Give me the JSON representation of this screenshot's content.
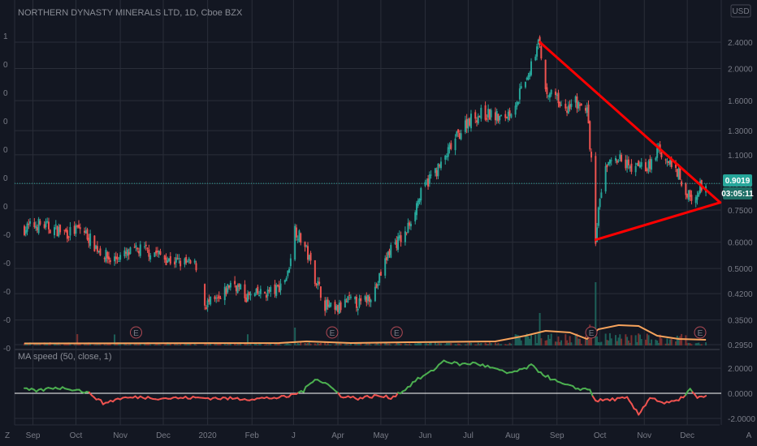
{
  "header": {
    "symbol": "NORTHERN DYNASTY MINERALS LTD, 1D, Cboe BZX",
    "currency": "USD"
  },
  "indicator": {
    "title": "MA speed (50, close, 1)",
    "ticks": [
      "2.0000",
      "0.0000",
      "-2.0000"
    ]
  },
  "price_tags": {
    "last": "0.9019",
    "countdown": "03:05:11"
  },
  "earnings_marker": "E",
  "bottom_left": "Z",
  "bottom_right": "A",
  "left_scale_partial": [
    "1",
    "0",
    "0",
    "0",
    "0",
    "0",
    "0",
    "-0",
    "-0",
    "-0",
    "-0",
    "-0"
  ],
  "colors": {
    "background": "#131722",
    "grid": "#2a2e39",
    "up": "#26a69a",
    "down": "#ef5350",
    "trendline": "#ff0000",
    "volume_ma": "#f7a35c",
    "ma_speed_up": "#4caf50",
    "ma_speed_down": "#ef5350",
    "last_price": "#26a69a"
  },
  "chart_data": [
    {
      "type": "candlestick",
      "title": "NORTHERN DYNASTY MINERALS LTD, 1D, Cboe BZX",
      "y_scale": "log",
      "y_ticks": [
        "2.4000",
        "2.0000",
        "1.6000",
        "1.3000",
        "1.1000",
        "0.9000",
        "0.7500",
        "0.6000",
        "0.5000",
        "0.4200",
        "0.3500",
        "0.2950"
      ],
      "x_ticks": [
        "Sep",
        "Oct",
        "Nov",
        "Dec",
        "2020",
        "Feb",
        "J",
        "Apr",
        "May",
        "Jun",
        "Jul",
        "Aug",
        "Sep",
        "Oct",
        "Nov",
        "Dec"
      ],
      "x_range": [
        "2019-08-26",
        "2020-12-10"
      ],
      "close_path": [
        [
          "2019-08-26",
          0.66
        ],
        [
          "2019-09-05",
          0.68
        ],
        [
          "2019-09-15",
          0.66
        ],
        [
          "2019-09-25",
          0.64
        ],
        [
          "2019-10-05",
          0.66
        ],
        [
          "2019-10-15",
          0.58
        ],
        [
          "2019-10-25",
          0.53
        ],
        [
          "2019-11-05",
          0.55
        ],
        [
          "2019-11-15",
          0.57
        ],
        [
          "2019-11-25",
          0.56
        ],
        [
          "2019-12-05",
          0.53
        ],
        [
          "2019-12-15",
          0.52
        ],
        [
          "2019-12-24",
          0.51
        ],
        [
          "2019-12-30",
          0.39
        ],
        [
          "2020-01-10",
          0.4
        ],
        [
          "2020-01-18",
          0.46
        ],
        [
          "2020-01-28",
          0.41
        ],
        [
          "2020-02-08",
          0.42
        ],
        [
          "2020-02-18",
          0.43
        ],
        [
          "2020-02-26",
          0.48
        ],
        [
          "2020-03-02",
          0.66
        ],
        [
          "2020-03-09",
          0.58
        ],
        [
          "2020-03-16",
          0.47
        ],
        [
          "2020-03-23",
          0.39
        ],
        [
          "2020-03-30",
          0.37
        ],
        [
          "2020-04-08",
          0.4
        ],
        [
          "2020-04-18",
          0.39
        ],
        [
          "2020-04-28",
          0.44
        ],
        [
          "2020-05-08",
          0.58
        ],
        [
          "2020-05-18",
          0.63
        ],
        [
          "2020-05-28",
          0.82
        ],
        [
          "2020-06-05",
          0.95
        ],
        [
          "2020-06-12",
          1.02
        ],
        [
          "2020-06-22",
          1.22
        ],
        [
          "2020-07-01",
          1.4
        ],
        [
          "2020-07-10",
          1.46
        ],
        [
          "2020-07-18",
          1.45
        ],
        [
          "2020-07-25",
          1.4
        ],
        [
          "2020-08-01",
          1.52
        ],
        [
          "2020-08-10",
          1.82
        ],
        [
          "2020-08-20",
          2.4
        ],
        [
          "2020-08-24",
          1.7
        ],
        [
          "2020-08-31",
          1.62
        ],
        [
          "2020-09-07",
          1.47
        ],
        [
          "2020-09-14",
          1.58
        ],
        [
          "2020-09-22",
          1.48
        ],
        [
          "2020-09-28",
          0.62
        ],
        [
          "2020-10-01",
          0.82
        ],
        [
          "2020-10-06",
          1.02
        ],
        [
          "2020-10-14",
          1.08
        ],
        [
          "2020-10-22",
          1.0
        ],
        [
          "2020-10-28",
          1.0
        ],
        [
          "2020-11-04",
          1.02
        ],
        [
          "2020-11-11",
          1.12
        ],
        [
          "2020-11-18",
          1.08
        ],
        [
          "2020-11-25",
          0.96
        ],
        [
          "2020-12-01",
          0.84
        ],
        [
          "2020-12-06",
          0.77
        ],
        [
          "2020-12-10",
          0.88
        ],
        [
          "2020-12-14",
          0.9
        ]
      ],
      "last_price": 0.9019,
      "trendlines": [
        {
          "points": [
            [
              "2020-08-20",
              2.4
            ],
            [
              "2020-12-24",
              0.79
            ]
          ]
        },
        {
          "points": [
            [
              "2020-09-28",
              0.61
            ],
            [
              "2020-12-24",
              0.79
            ]
          ]
        }
      ],
      "earnings_events": [
        "2019-11-12",
        "2020-03-28",
        "2020-05-12",
        "2020-09-25",
        "2020-12-10"
      ]
    },
    {
      "type": "line",
      "title": "MA speed (50, close, 1)",
      "ylim": [
        -2.5,
        3.2
      ],
      "y_ticks": [
        2.0,
        0.0,
        -2.0
      ],
      "zero_line": 0,
      "points": [
        [
          "2019-08-26",
          0.3
        ],
        [
          "2019-09-05",
          0.2
        ],
        [
          "2019-09-15",
          0.45
        ],
        [
          "2019-09-25",
          0.4
        ],
        [
          "2019-10-05",
          0.2
        ],
        [
          "2019-10-12",
          -0.1
        ],
        [
          "2019-10-20",
          -0.8
        ],
        [
          "2019-11-01",
          -0.4
        ],
        [
          "2019-11-15",
          -0.3
        ],
        [
          "2019-12-01",
          -0.4
        ],
        [
          "2019-12-20",
          -0.35
        ],
        [
          "2020-01-10",
          -0.4
        ],
        [
          "2020-02-01",
          -0.45
        ],
        [
          "2020-02-25",
          -0.3
        ],
        [
          "2020-03-08",
          0.2
        ],
        [
          "2020-03-16",
          1.2
        ],
        [
          "2020-03-25",
          0.7
        ],
        [
          "2020-04-03",
          -0.2
        ],
        [
          "2020-04-15",
          -0.4
        ],
        [
          "2020-04-28",
          -0.2
        ],
        [
          "2020-05-08",
          -0.35
        ],
        [
          "2020-05-18",
          0.3
        ],
        [
          "2020-05-25",
          1.0
        ],
        [
          "2020-06-05",
          1.7
        ],
        [
          "2020-06-14",
          2.6
        ],
        [
          "2020-06-25",
          2.3
        ],
        [
          "2020-07-06",
          2.4
        ],
        [
          "2020-07-18",
          2.0
        ],
        [
          "2020-07-28",
          1.6
        ],
        [
          "2020-08-06",
          1.8
        ],
        [
          "2020-08-14",
          2.2
        ],
        [
          "2020-08-24",
          1.4
        ],
        [
          "2020-09-03",
          0.8
        ],
        [
          "2020-09-14",
          0.4
        ],
        [
          "2020-09-24",
          0.3
        ],
        [
          "2020-09-28",
          -0.6
        ],
        [
          "2020-10-08",
          -0.5
        ],
        [
          "2020-10-20",
          -0.4
        ],
        [
          "2020-10-28",
          -1.7
        ],
        [
          "2020-11-05",
          -0.3
        ],
        [
          "2020-11-15",
          -0.8
        ],
        [
          "2020-11-25",
          -0.6
        ],
        [
          "2020-12-03",
          0.3
        ],
        [
          "2020-12-08",
          -0.4
        ],
        [
          "2020-12-14",
          -0.2
        ]
      ]
    }
  ]
}
